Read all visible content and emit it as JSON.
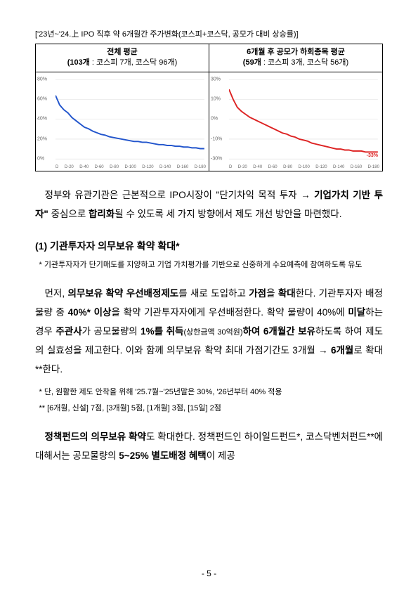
{
  "chartTitle": "['23년~'24.上 IPO 직후 약 6개월간 주가변화(코스피+코스닥, 공모가 대비 상승률)]",
  "leftChart": {
    "headerLine1": "전체 평균",
    "headerLine2a": "(103개",
    "headerLine2b": " : 코스피 7개, 코스닥 96개)",
    "lineColor": "#2255cc",
    "yLabels": [
      "80%",
      "60%",
      "40%",
      "20%",
      "0%"
    ],
    "xLabels": [
      "D",
      "D-20",
      "D-40",
      "D-60",
      "D-80",
      "D-100",
      "D-120",
      "D-140",
      "D-160",
      "D-180"
    ],
    "points": [
      [
        0,
        80
      ],
      [
        5,
        68
      ],
      [
        10,
        62
      ],
      [
        15,
        58
      ],
      [
        20,
        52
      ],
      [
        25,
        48
      ],
      [
        30,
        44
      ],
      [
        35,
        40
      ],
      [
        40,
        38
      ],
      [
        45,
        35
      ],
      [
        50,
        33
      ],
      [
        55,
        31
      ],
      [
        60,
        30
      ],
      [
        65,
        28
      ],
      [
        70,
        27
      ],
      [
        75,
        26
      ],
      [
        80,
        25
      ],
      [
        85,
        24
      ],
      [
        90,
        23
      ],
      [
        95,
        22
      ],
      [
        100,
        22
      ],
      [
        105,
        21
      ],
      [
        110,
        21
      ],
      [
        115,
        20
      ],
      [
        120,
        19
      ],
      [
        125,
        18
      ],
      [
        130,
        18
      ],
      [
        135,
        17
      ],
      [
        140,
        17
      ],
      [
        145,
        16
      ],
      [
        150,
        16
      ],
      [
        155,
        15
      ],
      [
        160,
        15
      ],
      [
        165,
        14
      ],
      [
        170,
        14
      ],
      [
        175,
        13
      ],
      [
        180,
        13
      ]
    ],
    "yMax": 100,
    "yMin": 0
  },
  "rightChart": {
    "headerLine1": "6개월 후 공모가 하회종목 평균",
    "headerLine2a": "(59개",
    "headerLine2b": " : 코스피 3개, 코스닥 56개)",
    "lineColor": "#dd2222",
    "yLabels": [
      "30%",
      "10%",
      "0%",
      "-10%",
      "-30%"
    ],
    "xLabels": [
      "D",
      "D-20",
      "D-40",
      "D-60",
      "D-80",
      "D-100",
      "D-120",
      "D-140",
      "D-160",
      "D-180"
    ],
    "endLabel": "-33%",
    "points": [
      [
        0,
        30
      ],
      [
        5,
        20
      ],
      [
        10,
        12
      ],
      [
        15,
        8
      ],
      [
        20,
        5
      ],
      [
        25,
        2
      ],
      [
        30,
        0
      ],
      [
        35,
        -2
      ],
      [
        40,
        -4
      ],
      [
        45,
        -6
      ],
      [
        50,
        -8
      ],
      [
        55,
        -10
      ],
      [
        60,
        -12
      ],
      [
        65,
        -14
      ],
      [
        70,
        -15
      ],
      [
        75,
        -17
      ],
      [
        80,
        -18
      ],
      [
        85,
        -20
      ],
      [
        90,
        -21
      ],
      [
        95,
        -22
      ],
      [
        100,
        -24
      ],
      [
        105,
        -25
      ],
      [
        110,
        -26
      ],
      [
        115,
        -27
      ],
      [
        120,
        -28
      ],
      [
        125,
        -29
      ],
      [
        130,
        -30
      ],
      [
        135,
        -30
      ],
      [
        140,
        -31
      ],
      [
        145,
        -31
      ],
      [
        150,
        -32
      ],
      [
        155,
        -32
      ],
      [
        160,
        -32
      ],
      [
        165,
        -33
      ],
      [
        170,
        -33
      ],
      [
        175,
        -33
      ],
      [
        180,
        -33
      ]
    ],
    "yMax": 40,
    "yMin": -40
  },
  "para1a": "정부와 유관기관은 근본적으로 IPO시장이 \"단기차익 목적 투자 → ",
  "para1b": "기업가치 기반 투자\"",
  "para1c": " 중심으로 ",
  "para1d": "합리화",
  "para1e": "될 수 있도록 세 가지 방향에서 제도 개선 방안을 마련했다.",
  "section1Title": "(1) 기관투자자 의무보유 확약 확대",
  "section1Star": "*",
  "section1Note": "* 기관투자자가 단기매도를 지양하고 기업 가치평가를 기반으로 신중하게 수요예측에 참여하도록 유도",
  "para2a": "먼저, ",
  "para2b": "의무보유 확약 우선배정제도",
  "para2c": "를 새로 도입하고 ",
  "para2d": "가점",
  "para2e": "을 ",
  "para2f": "확대",
  "para2g": "한다. 기관투자자 배정물량 중 ",
  "para2h": "40%* 이상",
  "para2i": "을 확약 기관투자자에게 우선배정한다. 확약 물량이 40%에 ",
  "para2j": "미달",
  "para2k": "하는 경우 ",
  "para2l": "주관사",
  "para2m": "가 공모물량의 ",
  "para2n": "1%를 취득",
  "para2o": "(상한금액 30억원)",
  "para2p": "하여 6개월간 보유",
  "para2q": "하도록 하여 제도의 실효성을 제고한다. 이와 함께 의무보유 확약 최대 가점기간도 3개월 → ",
  "para2r": "6개월",
  "para2s": "로 확대**한다.",
  "footnote2a": "* 단, 원활한 제도 안착을 위해 '25.7월~'25년말은 30%, '26년부터 40% 적용",
  "footnote2b": "** [6개월, 신설] 7점, [3개월] 5점, [1개월] 3점, [15일] 2점",
  "para3a": "정책펀드의 의무보유 확약",
  "para3b": "도 확대한다. 정책펀드인 하이일드펀드*, 코스닥벤처펀드**에 대해서는 공모물량의 ",
  "para3c": "5~25% 별도배정 혜택",
  "para3d": "이 제공",
  "pageNumber": "- 5 -"
}
